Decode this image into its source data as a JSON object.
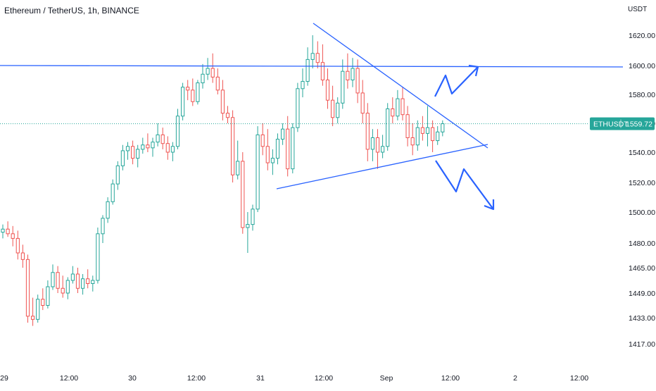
{
  "header": {
    "title": "Ethereum / TetherUS, 1h, BINANCE"
  },
  "price_axis": {
    "unit": "USDT"
  },
  "colors": {
    "up": "#26a69a",
    "down": "#ef5350",
    "drawing": "#2962ff",
    "price_tag": "#26a69a"
  },
  "chart_data": {
    "type": "candlestick",
    "symbol": "ETHUSDT",
    "interval": "1h",
    "exchange": "BINANCE",
    "last_price": {
      "label": "ETHUSDT",
      "value": "1559.72"
    },
    "y_ticks": [
      "1620.00",
      "1600.00",
      "1580.00",
      "1560.00",
      "1540.00",
      "1520.00",
      "1500.00",
      "1480.00",
      "1465.00",
      "1449.00",
      "1433.00",
      "1417.00"
    ],
    "x_ticks": [
      "29",
      "12:00",
      "30",
      "12:00",
      "31",
      "12:00",
      "Sep",
      "12:00",
      "2",
      "12:00"
    ],
    "candles": [
      {
        "o": 1487,
        "h": 1492,
        "l": 1483,
        "c": 1489
      },
      {
        "o": 1489,
        "h": 1494,
        "l": 1484,
        "c": 1486
      },
      {
        "o": 1486,
        "h": 1491,
        "l": 1478,
        "c": 1483
      },
      {
        "o": 1483,
        "h": 1488,
        "l": 1470,
        "c": 1474
      },
      {
        "o": 1474,
        "h": 1479,
        "l": 1465,
        "c": 1470
      },
      {
        "o": 1470,
        "h": 1473,
        "l": 1430,
        "c": 1434
      },
      {
        "o": 1434,
        "h": 1446,
        "l": 1428,
        "c": 1432
      },
      {
        "o": 1432,
        "h": 1448,
        "l": 1430,
        "c": 1445
      },
      {
        "o": 1445,
        "h": 1452,
        "l": 1438,
        "c": 1441
      },
      {
        "o": 1441,
        "h": 1457,
        "l": 1439,
        "c": 1453
      },
      {
        "o": 1453,
        "h": 1467,
        "l": 1451,
        "c": 1462
      },
      {
        "o": 1462,
        "h": 1466,
        "l": 1449,
        "c": 1452
      },
      {
        "o": 1452,
        "h": 1460,
        "l": 1446,
        "c": 1449
      },
      {
        "o": 1449,
        "h": 1459,
        "l": 1445,
        "c": 1457
      },
      {
        "o": 1457,
        "h": 1466,
        "l": 1455,
        "c": 1461
      },
      {
        "o": 1461,
        "h": 1465,
        "l": 1449,
        "c": 1452
      },
      {
        "o": 1452,
        "h": 1461,
        "l": 1448,
        "c": 1458
      },
      {
        "o": 1458,
        "h": 1464,
        "l": 1452,
        "c": 1455
      },
      {
        "o": 1455,
        "h": 1460,
        "l": 1450,
        "c": 1457
      },
      {
        "o": 1457,
        "h": 1490,
        "l": 1455,
        "c": 1486
      },
      {
        "o": 1486,
        "h": 1498,
        "l": 1480,
        "c": 1496
      },
      {
        "o": 1496,
        "h": 1510,
        "l": 1493,
        "c": 1507
      },
      {
        "o": 1507,
        "h": 1522,
        "l": 1505,
        "c": 1519
      },
      {
        "o": 1519,
        "h": 1534,
        "l": 1515,
        "c": 1531
      },
      {
        "o": 1531,
        "h": 1545,
        "l": 1528,
        "c": 1541
      },
      {
        "o": 1541,
        "h": 1547,
        "l": 1535,
        "c": 1544
      },
      {
        "o": 1544,
        "h": 1548,
        "l": 1532,
        "c": 1536
      },
      {
        "o": 1536,
        "h": 1545,
        "l": 1530,
        "c": 1542
      },
      {
        "o": 1542,
        "h": 1550,
        "l": 1539,
        "c": 1545
      },
      {
        "o": 1545,
        "h": 1553,
        "l": 1540,
        "c": 1543
      },
      {
        "o": 1543,
        "h": 1550,
        "l": 1537,
        "c": 1547
      },
      {
        "o": 1547,
        "h": 1560,
        "l": 1544,
        "c": 1552
      },
      {
        "o": 1552,
        "h": 1557,
        "l": 1542,
        "c": 1546
      },
      {
        "o": 1546,
        "h": 1551,
        "l": 1535,
        "c": 1540
      },
      {
        "o": 1540,
        "h": 1547,
        "l": 1534,
        "c": 1544
      },
      {
        "o": 1544,
        "h": 1570,
        "l": 1542,
        "c": 1565
      },
      {
        "o": 1565,
        "h": 1588,
        "l": 1562,
        "c": 1585
      },
      {
        "o": 1585,
        "h": 1590,
        "l": 1576,
        "c": 1583
      },
      {
        "o": 1583,
        "h": 1591,
        "l": 1572,
        "c": 1575
      },
      {
        "o": 1575,
        "h": 1590,
        "l": 1573,
        "c": 1588
      },
      {
        "o": 1588,
        "h": 1601,
        "l": 1584,
        "c": 1594
      },
      {
        "o": 1594,
        "h": 1605,
        "l": 1590,
        "c": 1598
      },
      {
        "o": 1598,
        "h": 1608,
        "l": 1588,
        "c": 1592
      },
      {
        "o": 1592,
        "h": 1598,
        "l": 1580,
        "c": 1583
      },
      {
        "o": 1583,
        "h": 1590,
        "l": 1562,
        "c": 1567
      },
      {
        "o": 1567,
        "h": 1572,
        "l": 1560,
        "c": 1564
      },
      {
        "o": 1564,
        "h": 1569,
        "l": 1520,
        "c": 1525
      },
      {
        "o": 1525,
        "h": 1548,
        "l": 1522,
        "c": 1534
      },
      {
        "o": 1534,
        "h": 1540,
        "l": 1486,
        "c": 1490
      },
      {
        "o": 1490,
        "h": 1500,
        "l": 1474,
        "c": 1492
      },
      {
        "o": 1492,
        "h": 1505,
        "l": 1488,
        "c": 1502
      },
      {
        "o": 1502,
        "h": 1558,
        "l": 1500,
        "c": 1552
      },
      {
        "o": 1552,
        "h": 1560,
        "l": 1538,
        "c": 1544
      },
      {
        "o": 1544,
        "h": 1556,
        "l": 1528,
        "c": 1533
      },
      {
        "o": 1533,
        "h": 1542,
        "l": 1525,
        "c": 1536
      },
      {
        "o": 1536,
        "h": 1553,
        "l": 1532,
        "c": 1549
      },
      {
        "o": 1549,
        "h": 1560,
        "l": 1545,
        "c": 1556
      },
      {
        "o": 1556,
        "h": 1565,
        "l": 1524,
        "c": 1529
      },
      {
        "o": 1529,
        "h": 1560,
        "l": 1526,
        "c": 1557
      },
      {
        "o": 1557,
        "h": 1588,
        "l": 1554,
        "c": 1584
      },
      {
        "o": 1584,
        "h": 1598,
        "l": 1578,
        "c": 1589
      },
      {
        "o": 1589,
        "h": 1612,
        "l": 1586,
        "c": 1604
      },
      {
        "o": 1604,
        "h": 1620,
        "l": 1598,
        "c": 1608
      },
      {
        "o": 1608,
        "h": 1616,
        "l": 1598,
        "c": 1602
      },
      {
        "o": 1602,
        "h": 1614,
        "l": 1586,
        "c": 1590
      },
      {
        "o": 1590,
        "h": 1598,
        "l": 1570,
        "c": 1576
      },
      {
        "o": 1576,
        "h": 1586,
        "l": 1558,
        "c": 1564
      },
      {
        "o": 1564,
        "h": 1578,
        "l": 1560,
        "c": 1574
      },
      {
        "o": 1574,
        "h": 1604,
        "l": 1570,
        "c": 1596
      },
      {
        "o": 1596,
        "h": 1608,
        "l": 1584,
        "c": 1590
      },
      {
        "o": 1590,
        "h": 1605,
        "l": 1585,
        "c": 1598
      },
      {
        "o": 1598,
        "h": 1604,
        "l": 1574,
        "c": 1581
      },
      {
        "o": 1581,
        "h": 1590,
        "l": 1560,
        "c": 1567
      },
      {
        "o": 1567,
        "h": 1574,
        "l": 1534,
        "c": 1542
      },
      {
        "o": 1542,
        "h": 1556,
        "l": 1534,
        "c": 1550
      },
      {
        "o": 1550,
        "h": 1556,
        "l": 1529,
        "c": 1540
      },
      {
        "o": 1540,
        "h": 1552,
        "l": 1536,
        "c": 1544
      },
      {
        "o": 1544,
        "h": 1574,
        "l": 1541,
        "c": 1570
      },
      {
        "o": 1570,
        "h": 1578,
        "l": 1560,
        "c": 1565
      },
      {
        "o": 1565,
        "h": 1583,
        "l": 1562,
        "c": 1577
      },
      {
        "o": 1577,
        "h": 1585,
        "l": 1562,
        "c": 1566
      },
      {
        "o": 1566,
        "h": 1572,
        "l": 1544,
        "c": 1550
      },
      {
        "o": 1550,
        "h": 1560,
        "l": 1538,
        "c": 1545
      },
      {
        "o": 1545,
        "h": 1562,
        "l": 1541,
        "c": 1557
      },
      {
        "o": 1557,
        "h": 1565,
        "l": 1548,
        "c": 1553
      },
      {
        "o": 1553,
        "h": 1572,
        "l": 1544,
        "c": 1557
      },
      {
        "o": 1557,
        "h": 1562,
        "l": 1540,
        "c": 1548
      },
      {
        "o": 1548,
        "h": 1558,
        "l": 1545,
        "c": 1554
      },
      {
        "o": 1554,
        "h": 1562,
        "l": 1551,
        "c": 1559.72
      }
    ]
  }
}
